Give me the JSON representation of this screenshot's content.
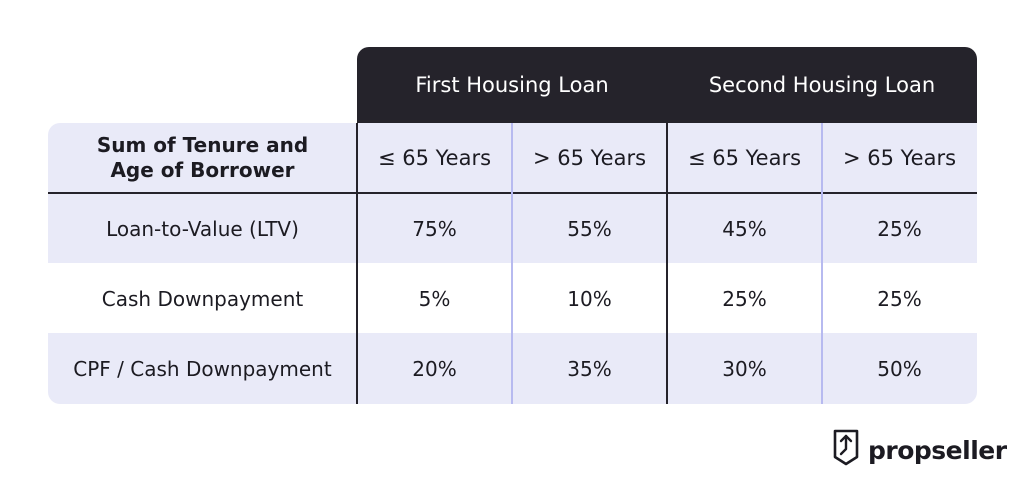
{
  "table": {
    "groups": [
      "First Housing Loan",
      "Second Housing Loan"
    ],
    "row_header_title": "Sum of Tenure and\nAge of Borrower",
    "subheaders": [
      "≤ 65 Years",
      "> 65 Years",
      "≤ 65 Years",
      "> 65 Years"
    ],
    "rows": [
      {
        "label": "Loan-to-Value (LTV)",
        "values": [
          "75%",
          "55%",
          "45%",
          "25%"
        ]
      },
      {
        "label": "Cash Downpayment",
        "values": [
          "5%",
          "10%",
          "25%",
          "25%"
        ]
      },
      {
        "label": "CPF / Cash Downpayment",
        "values": [
          "20%",
          "35%",
          "30%",
          "50%"
        ]
      }
    ]
  },
  "colors": {
    "header_dark": "#25232b",
    "band": "#e9eaf8",
    "divider_light": "#b7baf0"
  },
  "brand": {
    "name": "propseller",
    "icon": "propseller-logo-icon"
  }
}
